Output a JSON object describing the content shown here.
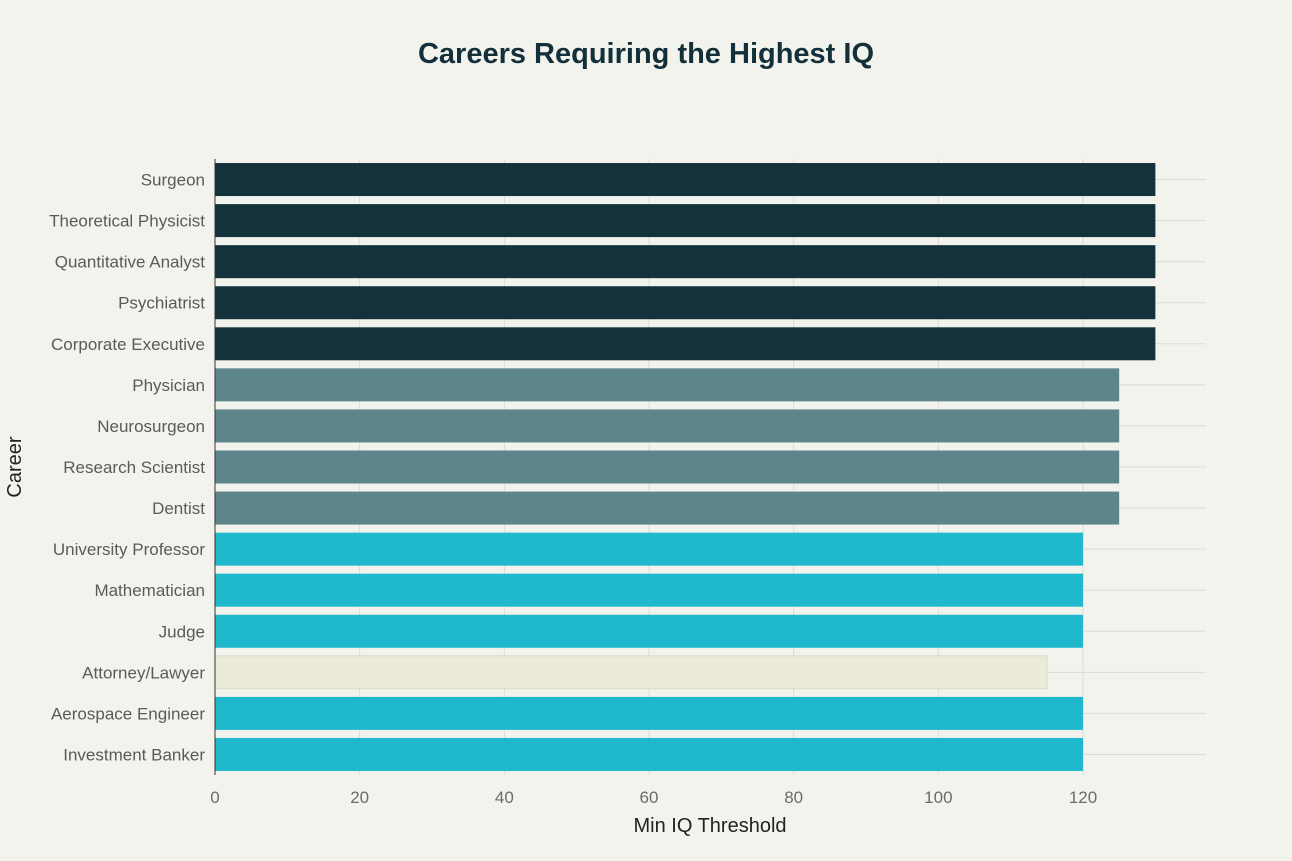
{
  "chart_data": {
    "type": "bar",
    "orientation": "horizontal",
    "title": "Careers Requiring the Highest IQ",
    "xlabel": "Min IQ Threshold",
    "ylabel": "Career",
    "categories": [
      "Surgeon",
      "Theoretical Physicist",
      "Quantitative Analyst",
      "Psychiatrist",
      "Corporate Executive",
      "Physician",
      "Neurosurgeon",
      "Research Scientist",
      "Dentist",
      "University Professor",
      "Mathematician",
      "Judge",
      "Attorney/Lawyer",
      "Aerospace Engineer",
      "Investment Banker"
    ],
    "values": [
      130,
      130,
      130,
      130,
      130,
      125,
      125,
      125,
      125,
      120,
      120,
      120,
      115,
      120,
      120
    ],
    "bar_colors": [
      "#13323b",
      "#13323b",
      "#13323b",
      "#13323b",
      "#13323b",
      "#5e858c",
      "#5e858c",
      "#5e858c",
      "#5e858c",
      "#1fb8cd",
      "#1fb8cd",
      "#1fb8cd",
      "#ecebd9",
      "#1fb8cd",
      "#1fb8cd"
    ],
    "xlim": [
      0,
      137
    ],
    "xticks": [
      0,
      20,
      40,
      60,
      80,
      100,
      120
    ],
    "grid": true,
    "legend": "none"
  }
}
